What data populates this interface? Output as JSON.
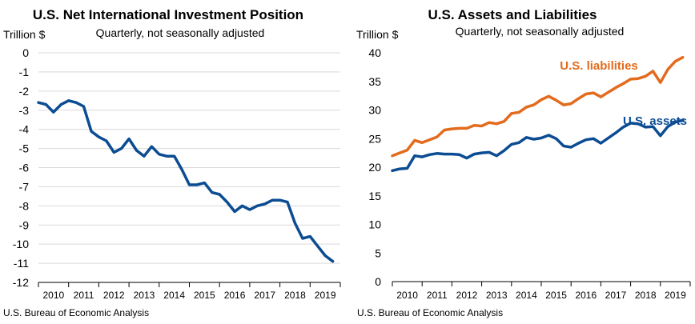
{
  "chart_data": [
    {
      "type": "line",
      "title": "U.S. Net International Investment Position",
      "subtitle": "Quarterly, not seasonally adjusted",
      "ylabel": "Trillion $",
      "source": "U.S. Bureau of Economic Analysis",
      "ylim": [
        -12,
        0
      ],
      "yticks": [
        0,
        -1,
        -2,
        -3,
        -4,
        -5,
        -6,
        -7,
        -8,
        -9,
        -10,
        -11,
        -12
      ],
      "x_start": 2009.75,
      "x_end": 2019.75,
      "xticks": [
        "2010",
        "2011",
        "2012",
        "2013",
        "2014",
        "2015",
        "2016",
        "2017",
        "2018",
        "2019"
      ],
      "grid": "horizontal",
      "series": [
        {
          "color": "#0b4c92",
          "x": [
            2009.75,
            2010.0,
            2010.25,
            2010.5,
            2010.75,
            2011.0,
            2011.25,
            2011.5,
            2011.75,
            2012.0,
            2012.25,
            2012.5,
            2012.75,
            2013.0,
            2013.25,
            2013.5,
            2013.75,
            2014.0,
            2014.25,
            2014.5,
            2014.75,
            2015.0,
            2015.25,
            2015.5,
            2015.75,
            2016.0,
            2016.25,
            2016.5,
            2016.75,
            2017.0,
            2017.25,
            2017.5,
            2017.75,
            2018.0,
            2018.25,
            2018.5,
            2018.75,
            2019.0,
            2019.25,
            2019.5
          ],
          "values": [
            -2.6,
            -2.7,
            -3.1,
            -2.7,
            -2.5,
            -2.6,
            -2.8,
            -4.1,
            -4.4,
            -4.6,
            -5.2,
            -5.0,
            -4.5,
            -5.1,
            -5.4,
            -4.9,
            -5.3,
            -5.4,
            -5.4,
            -6.1,
            -6.9,
            -6.9,
            -6.8,
            -7.3,
            -7.4,
            -7.8,
            -8.3,
            -8.0,
            -8.2,
            -8.0,
            -7.9,
            -7.7,
            -7.7,
            -7.8,
            -8.9,
            -9.7,
            -9.6,
            -10.1,
            -10.6,
            -10.9
          ]
        }
      ]
    },
    {
      "type": "line",
      "title": "U.S. Assets and Liabilities",
      "subtitle": "Quarterly, not seasonally adjusted",
      "ylabel": "Trillion $",
      "source": "U.S. Bureau of Economic Analysis",
      "ylim": [
        0,
        40
      ],
      "yticks": [
        40,
        35,
        30,
        25,
        20,
        15,
        10,
        5,
        0
      ],
      "x_start": 2009.75,
      "x_end": 2019.75,
      "xticks": [
        "2010",
        "2011",
        "2012",
        "2013",
        "2014",
        "2015",
        "2016",
        "2017",
        "2018",
        "2019"
      ],
      "grid": "none",
      "series": [
        {
          "name": "U.S. liabilities",
          "color": "#e26b1d",
          "x": [
            2009.75,
            2010.0,
            2010.25,
            2010.5,
            2010.75,
            2011.0,
            2011.25,
            2011.5,
            2011.75,
            2012.0,
            2012.25,
            2012.5,
            2012.75,
            2013.0,
            2013.25,
            2013.5,
            2013.75,
            2014.0,
            2014.25,
            2014.5,
            2014.75,
            2015.0,
            2015.25,
            2015.5,
            2015.75,
            2016.0,
            2016.25,
            2016.5,
            2016.75,
            2017.0,
            2017.25,
            2017.5,
            2017.75,
            2018.0,
            2018.25,
            2018.5,
            2018.75,
            2019.0,
            2019.25,
            2019.5
          ],
          "values": [
            22.0,
            22.5,
            23.0,
            24.7,
            24.3,
            24.8,
            25.3,
            26.5,
            26.7,
            26.8,
            26.8,
            27.3,
            27.2,
            27.8,
            27.6,
            28.0,
            29.4,
            29.6,
            30.5,
            30.9,
            31.8,
            32.4,
            31.7,
            30.9,
            31.1,
            32.0,
            32.8,
            33.0,
            32.3,
            33.1,
            33.9,
            34.6,
            35.4,
            35.5,
            35.9,
            36.8,
            34.8,
            37.1,
            38.5,
            39.2
          ]
        },
        {
          "name": "U.S. assets",
          "color": "#0b4c92",
          "x": [
            2009.75,
            2010.0,
            2010.25,
            2010.5,
            2010.75,
            2011.0,
            2011.25,
            2011.5,
            2011.75,
            2012.0,
            2012.25,
            2012.5,
            2012.75,
            2013.0,
            2013.25,
            2013.5,
            2013.75,
            2014.0,
            2014.25,
            2014.5,
            2014.75,
            2015.0,
            2015.25,
            2015.5,
            2015.75,
            2016.0,
            2016.25,
            2016.5,
            2016.75,
            2017.0,
            2017.25,
            2017.5,
            2017.75,
            2018.0,
            2018.25,
            2018.5,
            2018.75,
            2019.0,
            2019.25,
            2019.5
          ],
          "values": [
            19.4,
            19.7,
            19.8,
            22.0,
            21.8,
            22.2,
            22.4,
            22.3,
            22.3,
            22.2,
            21.6,
            22.3,
            22.5,
            22.6,
            22.0,
            22.9,
            24.0,
            24.3,
            25.2,
            24.9,
            25.1,
            25.6,
            25.0,
            23.7,
            23.5,
            24.2,
            24.8,
            25.0,
            24.2,
            25.1,
            26.0,
            27.0,
            27.7,
            27.6,
            27.0,
            27.1,
            25.5,
            27.1,
            27.9,
            28.2
          ]
        }
      ]
    }
  ]
}
